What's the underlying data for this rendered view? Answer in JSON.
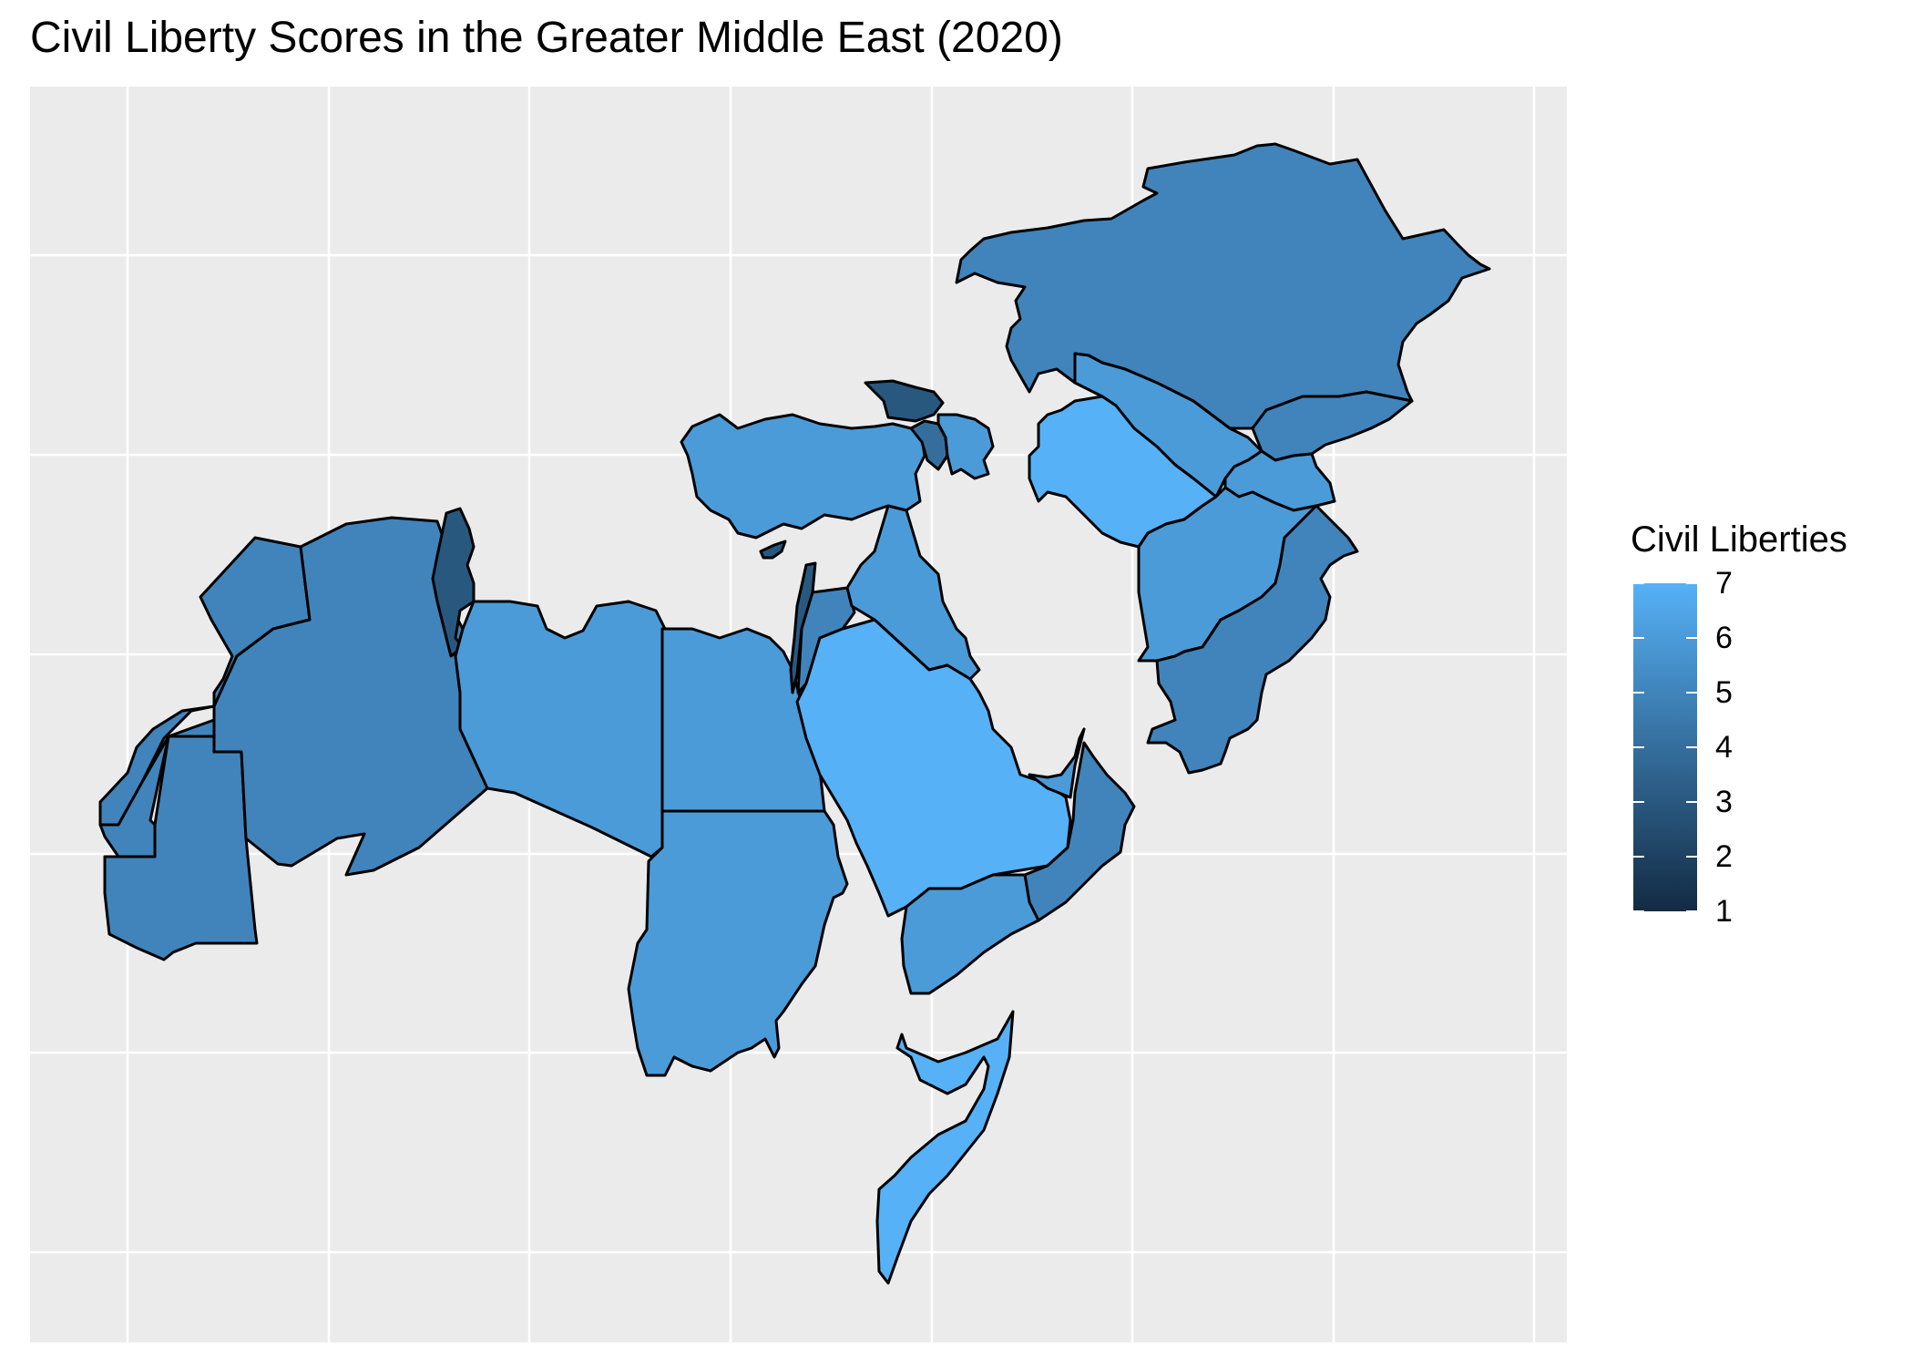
{
  "title": "Civil Liberty Scores in the Greater Middle East (2020)",
  "legend": {
    "title": "Civil Liberties",
    "min": 1,
    "max": 7,
    "ticks": [
      "7",
      "6",
      "5",
      "4",
      "3",
      "2",
      "1"
    ],
    "color_low": "#132B43",
    "color_high": "#56B1F7"
  },
  "colors": {
    "panel_background": "#EBEBEB",
    "grid": "#FFFFFF",
    "border": "#000000"
  },
  "regions": [
    {
      "id": "morocco",
      "value": 5
    },
    {
      "id": "western-sahara",
      "value": 5
    },
    {
      "id": "algeria",
      "value": 5
    },
    {
      "id": "tunisia",
      "value": 3
    },
    {
      "id": "libya",
      "value": 6
    },
    {
      "id": "egypt",
      "value": 6
    },
    {
      "id": "sudan",
      "value": 6
    },
    {
      "id": "mauritania",
      "value": 5
    },
    {
      "id": "israel",
      "value": 3
    },
    {
      "id": "jordan",
      "value": 5
    },
    {
      "id": "saudi-arabia",
      "value": 7
    },
    {
      "id": "iraq",
      "value": 6
    },
    {
      "id": "yemen",
      "value": 6
    },
    {
      "id": "oman",
      "value": 5
    },
    {
      "id": "uae",
      "value": 6
    },
    {
      "id": "somalia",
      "value": 7
    },
    {
      "id": "turkey",
      "value": 6
    },
    {
      "id": "cyprus",
      "value": 3
    },
    {
      "id": "georgia",
      "value": 3
    },
    {
      "id": "armenia",
      "value": 4
    },
    {
      "id": "azerbaijan",
      "value": 6
    },
    {
      "id": "turkmenistan",
      "value": 7
    },
    {
      "id": "uzbekistan",
      "value": 6
    },
    {
      "id": "kazakhstan",
      "value": 5
    },
    {
      "id": "kyrgyzstan",
      "value": 5
    },
    {
      "id": "tajikistan",
      "value": 6
    },
    {
      "id": "afghanistan",
      "value": 6
    },
    {
      "id": "pakistan",
      "value": 5
    }
  ]
}
